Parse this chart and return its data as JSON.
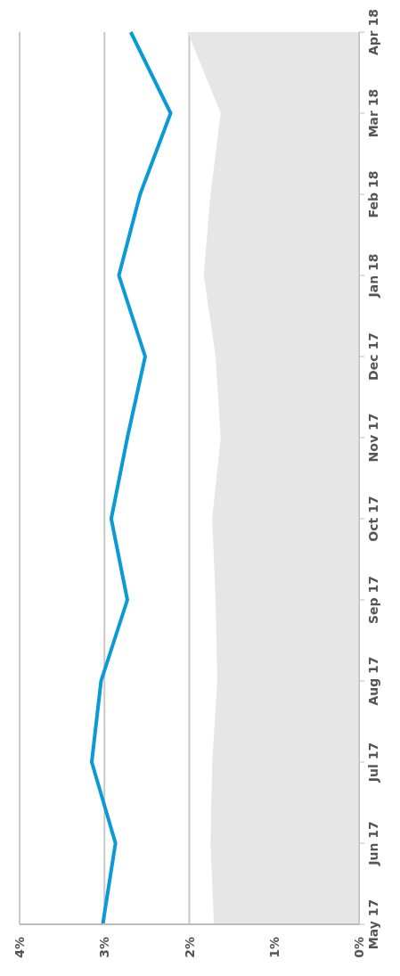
{
  "chart_data": {
    "type": "line",
    "orientation": "horizontal",
    "categories": [
      "Apr 18",
      "Mar 18",
      "Feb 18",
      "Jan 18",
      "Dec 17",
      "Nov 17",
      "Oct 17",
      "Sep 17",
      "Aug 17",
      "Jul 17",
      "Jun 17",
      "May 17"
    ],
    "series": [
      {
        "type": "area",
        "color": "#e6e6e6",
        "values": [
          2.02,
          1.63,
          1.75,
          1.83,
          1.69,
          1.63,
          1.73,
          1.69,
          1.67,
          1.73,
          1.75,
          1.71
        ]
      },
      {
        "color": "#0a9ad8",
        "values": [
          2.69,
          2.22,
          2.58,
          2.83,
          2.52,
          2.73,
          2.92,
          2.73,
          3.04,
          3.15,
          2.87,
          3.02
        ]
      }
    ],
    "xlim": [
      4,
      0
    ],
    "xticks": [
      {
        "value": 4,
        "label": "4%"
      },
      {
        "value": 3,
        "label": "3%"
      },
      {
        "value": 2,
        "label": "2%"
      },
      {
        "value": 1,
        "label": "1%"
      },
      {
        "value": 0,
        "label": "0%"
      }
    ],
    "grid": "x",
    "marker": "none",
    "legend": false
  }
}
